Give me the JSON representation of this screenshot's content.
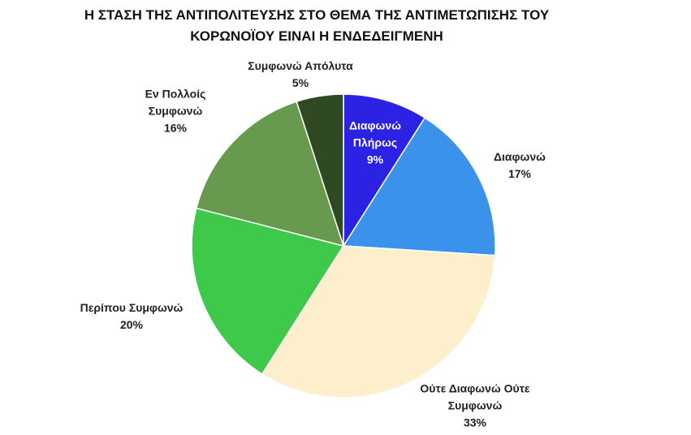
{
  "chart_data": {
    "type": "pie",
    "title": "Η ΣΤΑΣΗ ΤΗΣ ΑΝΤΙΠΟΛΙΤΕΥΣΗΣ ΣΤΟ ΘΕΜΑ ΤΗΣ ΑΝΤΙΜΕΤΩΠΙΣΗΣ ΤΟΥ ΚΟΡΩΝΟΪΟΥ ΕΙΝΑΙ Η ΕΝΔΕΔΕΙΓΜΕΝΗ",
    "categories": [
      "Διαφωνώ Πλήρως",
      "Διαφωνώ",
      "Ούτε Διαφωνώ Ούτε Συμφωνώ",
      "Περίπου Συμφωνώ",
      "Εν Πολλοίς Συμφωνώ",
      "Συμφωνώ Απόλυτα"
    ],
    "values": [
      9,
      17,
      33,
      20,
      16,
      5
    ],
    "value_labels": [
      "9%",
      "17%",
      "33%",
      "20%",
      "16%",
      "5%"
    ],
    "colors": [
      "#2b22e3",
      "#3a92ea",
      "#fdefcc",
      "#3ec94b",
      "#67994f",
      "#2f4a22"
    ]
  }
}
